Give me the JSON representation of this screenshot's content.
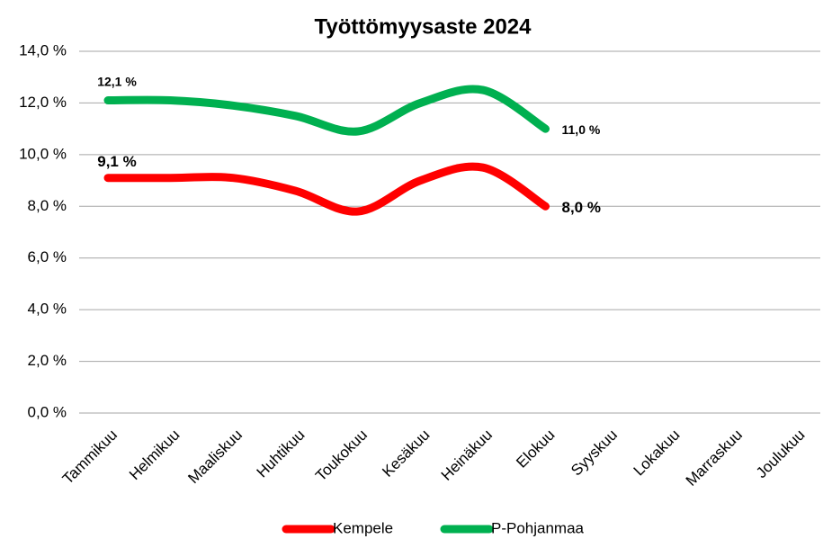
{
  "chart_data": {
    "type": "line",
    "title": "Työttömyysaste 2024",
    "categories": [
      "Tammikuu",
      "Helmikuu",
      "Maaliskuu",
      "Huhtikuu",
      "Toukokuu",
      "Kesäkuu",
      "Heinäkuu",
      "Elokuu",
      "Syyskuu",
      "Lokakuu",
      "Marraskuu",
      "Joulukuu"
    ],
    "series": [
      {
        "name": "Kempele",
        "color": "#ff0000",
        "values": [
          9.1,
          9.1,
          9.1,
          8.6,
          7.8,
          9.0,
          9.5,
          8.0,
          null,
          null,
          null,
          null
        ],
        "value_labels": [
          "9,1 %",
          null,
          null,
          null,
          null,
          null,
          null,
          "8,0 %",
          null,
          null,
          null,
          null
        ]
      },
      {
        "name": "P-Pohjanmaa",
        "color": "#00b050",
        "values": [
          12.1,
          12.1,
          11.9,
          11.5,
          10.9,
          12.0,
          12.5,
          11.0,
          null,
          null,
          null,
          null
        ],
        "value_labels": [
          "12,1 %",
          null,
          null,
          null,
          null,
          null,
          null,
          "11,0 %",
          null,
          null,
          null,
          null
        ]
      }
    ],
    "ylim": [
      0,
      14
    ],
    "yticks": [
      {
        "value": 0,
        "label": "0,0 %"
      },
      {
        "value": 2,
        "label": "2,0 %"
      },
      {
        "value": 4,
        "label": "4,0 %"
      },
      {
        "value": 6,
        "label": "6,0 %"
      },
      {
        "value": 8,
        "label": "8,0 %"
      },
      {
        "value": 10,
        "label": "10,0 %"
      },
      {
        "value": 12,
        "label": "12,0 %"
      },
      {
        "value": 14,
        "label": "14,0 %"
      }
    ],
    "grid": true,
    "legend": "bottom"
  }
}
